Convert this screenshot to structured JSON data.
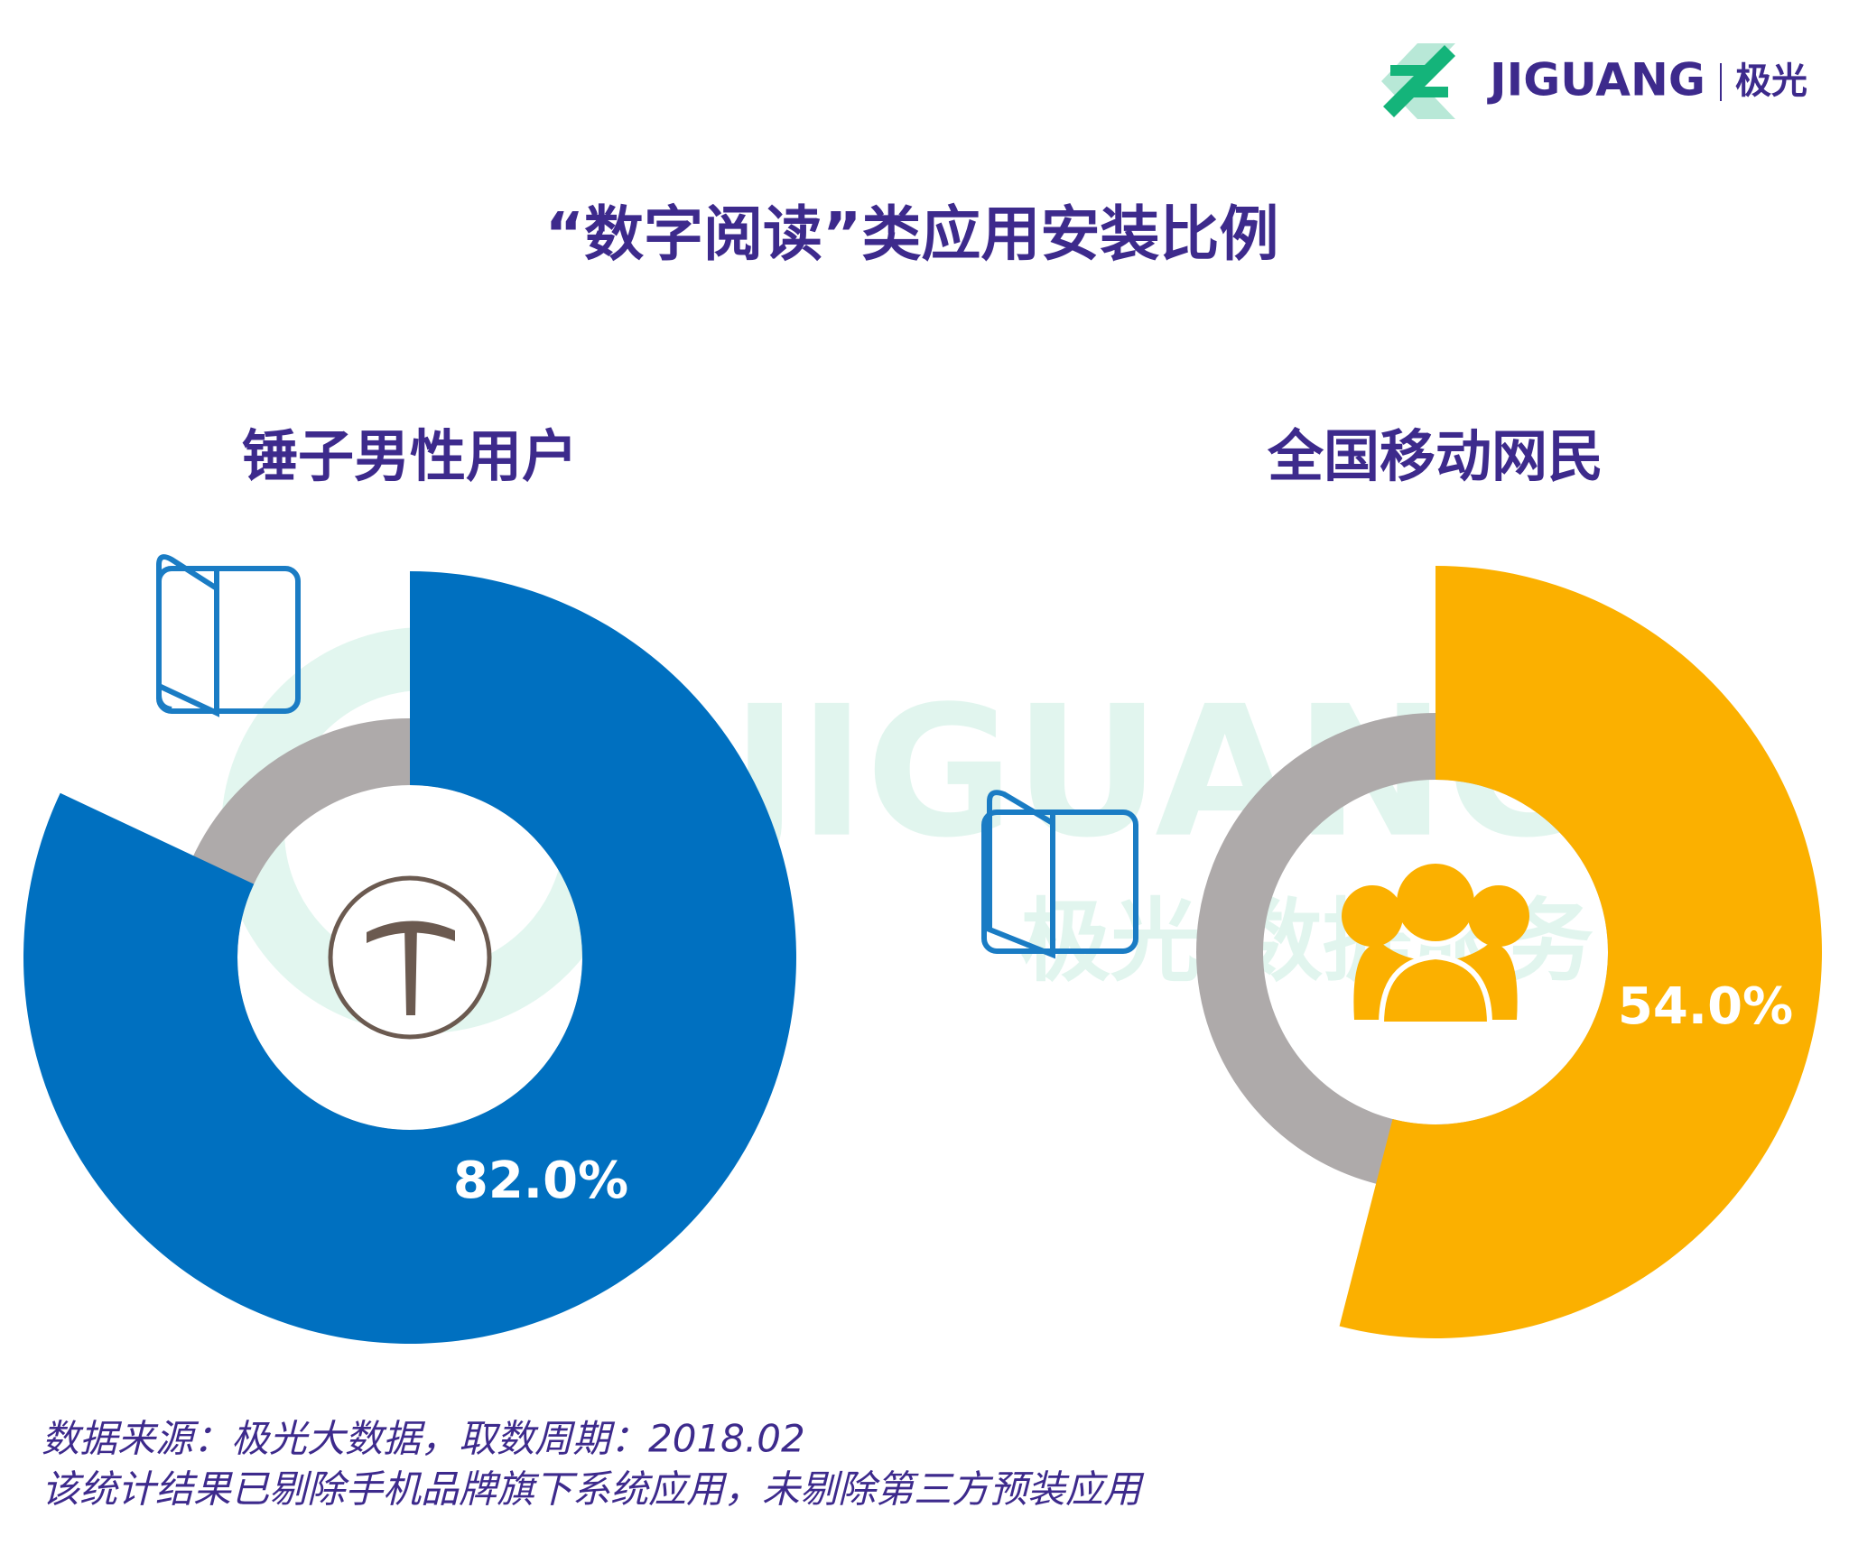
{
  "logo": {
    "brand": "JIGUANG",
    "cn": "极光"
  },
  "title": "“数字阅读”类应用安装比例",
  "watermark": {
    "brand": "JIGUANG",
    "cn": "极光 数据服务"
  },
  "chart_data": [
    {
      "type": "donut",
      "title": "锤子男性用户",
      "values": [
        82.0
      ],
      "value_labels": [
        "82.0%"
      ],
      "color": "#0070c0",
      "rest_color": "#aeaaaa"
    },
    {
      "type": "donut",
      "title": "全国移动网民",
      "values": [
        54.0
      ],
      "value_labels": [
        "54.0%"
      ],
      "color": "#fbb000",
      "rest_color": "#aeaaaa"
    }
  ],
  "notes": [
    "数据来源：极光大数据，取数周期：2018.02",
    "该统计结果已剔除手机品牌旗下系统应用，未剔除第三方预装应用"
  ]
}
